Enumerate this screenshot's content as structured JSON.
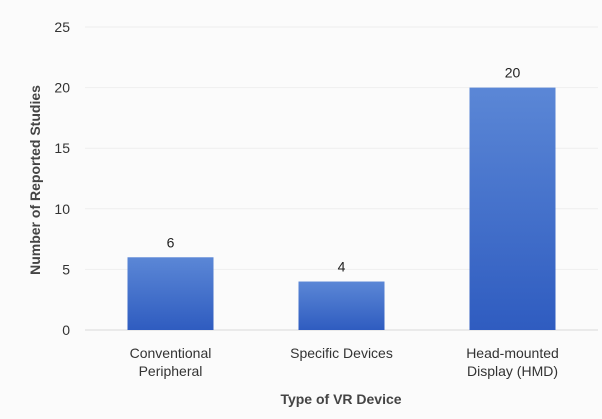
{
  "chart_data": {
    "type": "bar",
    "categories": [
      [
        "Conventional",
        "Peripheral"
      ],
      [
        "Specific Devices"
      ],
      [
        "Head-mounted",
        "Display (HMD)"
      ]
    ],
    "values": [
      6,
      4,
      20
    ],
    "data_labels": [
      "6",
      "4",
      "20"
    ],
    "xlabel": "Type of VR Device",
    "ylabel": "Number of Reported Studies",
    "ylim": [
      0,
      25
    ],
    "yticks": [
      0,
      5,
      10,
      15,
      20,
      25
    ],
    "grid": true,
    "legend": "none",
    "colors": {
      "bar_top": "#5b87d6",
      "bar_bottom": "#2f5cc0"
    }
  }
}
